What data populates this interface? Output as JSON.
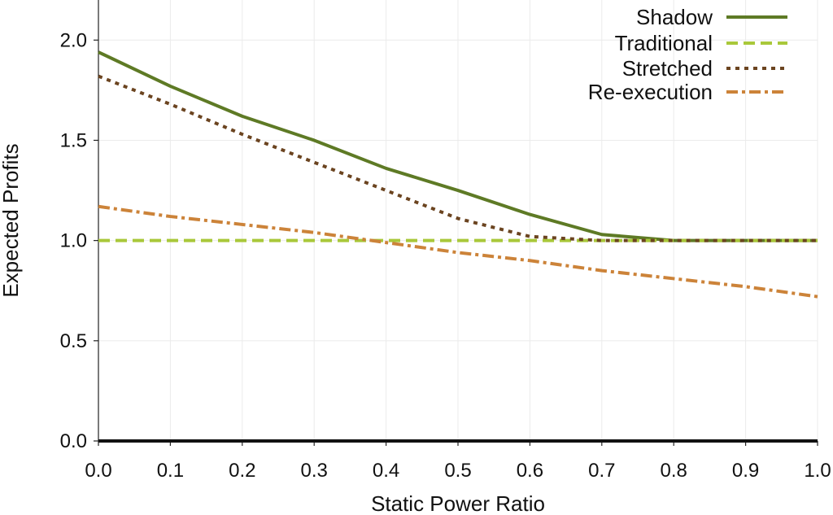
{
  "chart_data": {
    "type": "line",
    "title": "",
    "xlabel": "Static Power Ratio",
    "ylabel": "Expected Profits",
    "xlim": [
      0.0,
      1.0
    ],
    "ylim": [
      0.0,
      2.2
    ],
    "xticks": [
      0.0,
      0.1,
      0.2,
      0.3,
      0.4,
      0.5,
      0.6,
      0.7,
      0.8,
      0.9,
      1.0
    ],
    "xtick_labels": [
      "0.0",
      "0.1",
      "0.2",
      "0.3",
      "0.4",
      "0.5",
      "0.6",
      "0.7",
      "0.8",
      "0.9",
      "1.0"
    ],
    "yticks": [
      0.0,
      0.5,
      1.0,
      1.5,
      2.0
    ],
    "ytick_labels": [
      "0.0",
      "0.5",
      "1.0",
      "1.5",
      "2.0"
    ],
    "grid": true,
    "legend_position": "top-right",
    "x": [
      0.0,
      0.1,
      0.2,
      0.3,
      0.4,
      0.5,
      0.6,
      0.7,
      0.8,
      0.9,
      1.0
    ],
    "series": [
      {
        "name": "Shadow",
        "style": "solid",
        "color": "#5e7a25",
        "values": [
          1.94,
          1.77,
          1.62,
          1.5,
          1.36,
          1.25,
          1.13,
          1.03,
          1.0,
          1.0,
          1.0
        ]
      },
      {
        "name": "Traditional",
        "style": "dashed",
        "color": "#a9c83a",
        "values": [
          1.0,
          1.0,
          1.0,
          1.0,
          1.0,
          1.0,
          1.0,
          1.0,
          1.0,
          1.0,
          1.0
        ]
      },
      {
        "name": "Stretched",
        "style": "dotted",
        "color": "#6b4420",
        "values": [
          1.82,
          1.68,
          1.53,
          1.39,
          1.25,
          1.11,
          1.02,
          1.0,
          1.0,
          1.0,
          1.0
        ]
      },
      {
        "name": "Re-execution",
        "style": "dashdot",
        "color": "#cc8339",
        "values": [
          1.17,
          1.12,
          1.08,
          1.04,
          0.99,
          0.94,
          0.9,
          0.85,
          0.81,
          0.77,
          0.72
        ]
      }
    ]
  }
}
